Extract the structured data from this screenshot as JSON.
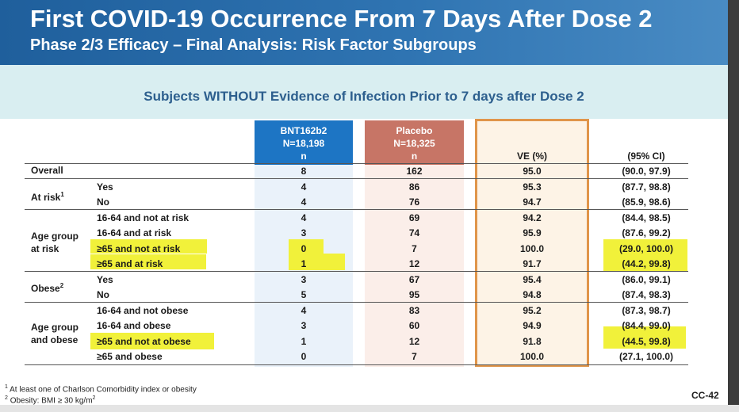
{
  "slide": {
    "title": "First COVID-19 Occurrence From 7 Days After Dose 2",
    "subtitle": "Phase 2/3 Efficacy – Final Analysis: Risk Factor Subgroups",
    "band_title": "Subjects WITHOUT Evidence of Infection Prior to 7 days after Dose 2",
    "slide_number": "CC-42"
  },
  "columns": {
    "bnt_name": "BNT162b2",
    "bnt_n": "N=18,198",
    "bnt_sub": "n",
    "placebo_name": "Placebo",
    "placebo_n": "N=18,325",
    "placebo_sub": "n",
    "ve": "VE (%)",
    "ci": "(95% CI)"
  },
  "groups": {
    "overall": "Overall",
    "at_risk": "At risk",
    "at_risk_sup": "1",
    "age_risk": "Age group\nat risk",
    "obese": "Obese",
    "obese_sup": "2",
    "age_obese": "Age group\nand obese"
  },
  "rows": [
    {
      "label": "",
      "bnt": "8",
      "placebo": "162",
      "ve": "95.0",
      "ci": "(90.0, 97.9)"
    },
    {
      "label": "Yes",
      "bnt": "4",
      "placebo": "86",
      "ve": "95.3",
      "ci": "(87.7, 98.8)"
    },
    {
      "label": "No",
      "bnt": "4",
      "placebo": "76",
      "ve": "94.7",
      "ci": "(85.9, 98.6)"
    },
    {
      "label": "16-64 and not at risk",
      "bnt": "4",
      "placebo": "69",
      "ve": "94.2",
      "ci": "(84.4, 98.5)"
    },
    {
      "label": "16-64 and at risk",
      "bnt": "3",
      "placebo": "74",
      "ve": "95.9",
      "ci": "(87.6, 99.2)"
    },
    {
      "label": "≥65 and not at risk",
      "bnt": "0",
      "placebo": "7",
      "ve": "100.0",
      "ci": "(29.0, 100.0)"
    },
    {
      "label": "≥65 and at risk",
      "bnt": "1",
      "placebo": "12",
      "ve": "91.7",
      "ci": "(44.2, 99.8)"
    },
    {
      "label": "Yes",
      "bnt": "3",
      "placebo": "67",
      "ve": "95.4",
      "ci": "(86.0, 99.1)"
    },
    {
      "label": "No",
      "bnt": "5",
      "placebo": "95",
      "ve": "94.8",
      "ci": "(87.4, 98.3)"
    },
    {
      "label": "16-64 and not obese",
      "bnt": "4",
      "placebo": "83",
      "ve": "95.2",
      "ci": "(87.3, 98.7)"
    },
    {
      "label": "16-64 and obese",
      "bnt": "3",
      "placebo": "60",
      "ve": "94.9",
      "ci": "(84.4, 99.0)"
    },
    {
      "label": "≥65 and not at obese",
      "bnt": "1",
      "placebo": "12",
      "ve": "91.8",
      "ci": "(44.5, 99.8)"
    },
    {
      "label": "≥65 and obese",
      "bnt": "0",
      "placebo": "7",
      "ve": "100.0",
      "ci": "(27.1, 100.0)"
    }
  ],
  "footnotes": {
    "fn1_mark": "1",
    "fn1": "At least one of Charlson Comorbidity index or obesity",
    "fn2_mark": "2",
    "fn2": "Obesity: BMI ≥ 30 kg/m",
    "fn2_exp": "2"
  },
  "colors": {
    "header_blue": "#2f74b2",
    "band": "#d9eef1",
    "bnt_header": "#1d75c4",
    "placebo_header": "#c77566",
    "ve_box_border": "#e0954a",
    "highlight": "#f1f13a"
  }
}
